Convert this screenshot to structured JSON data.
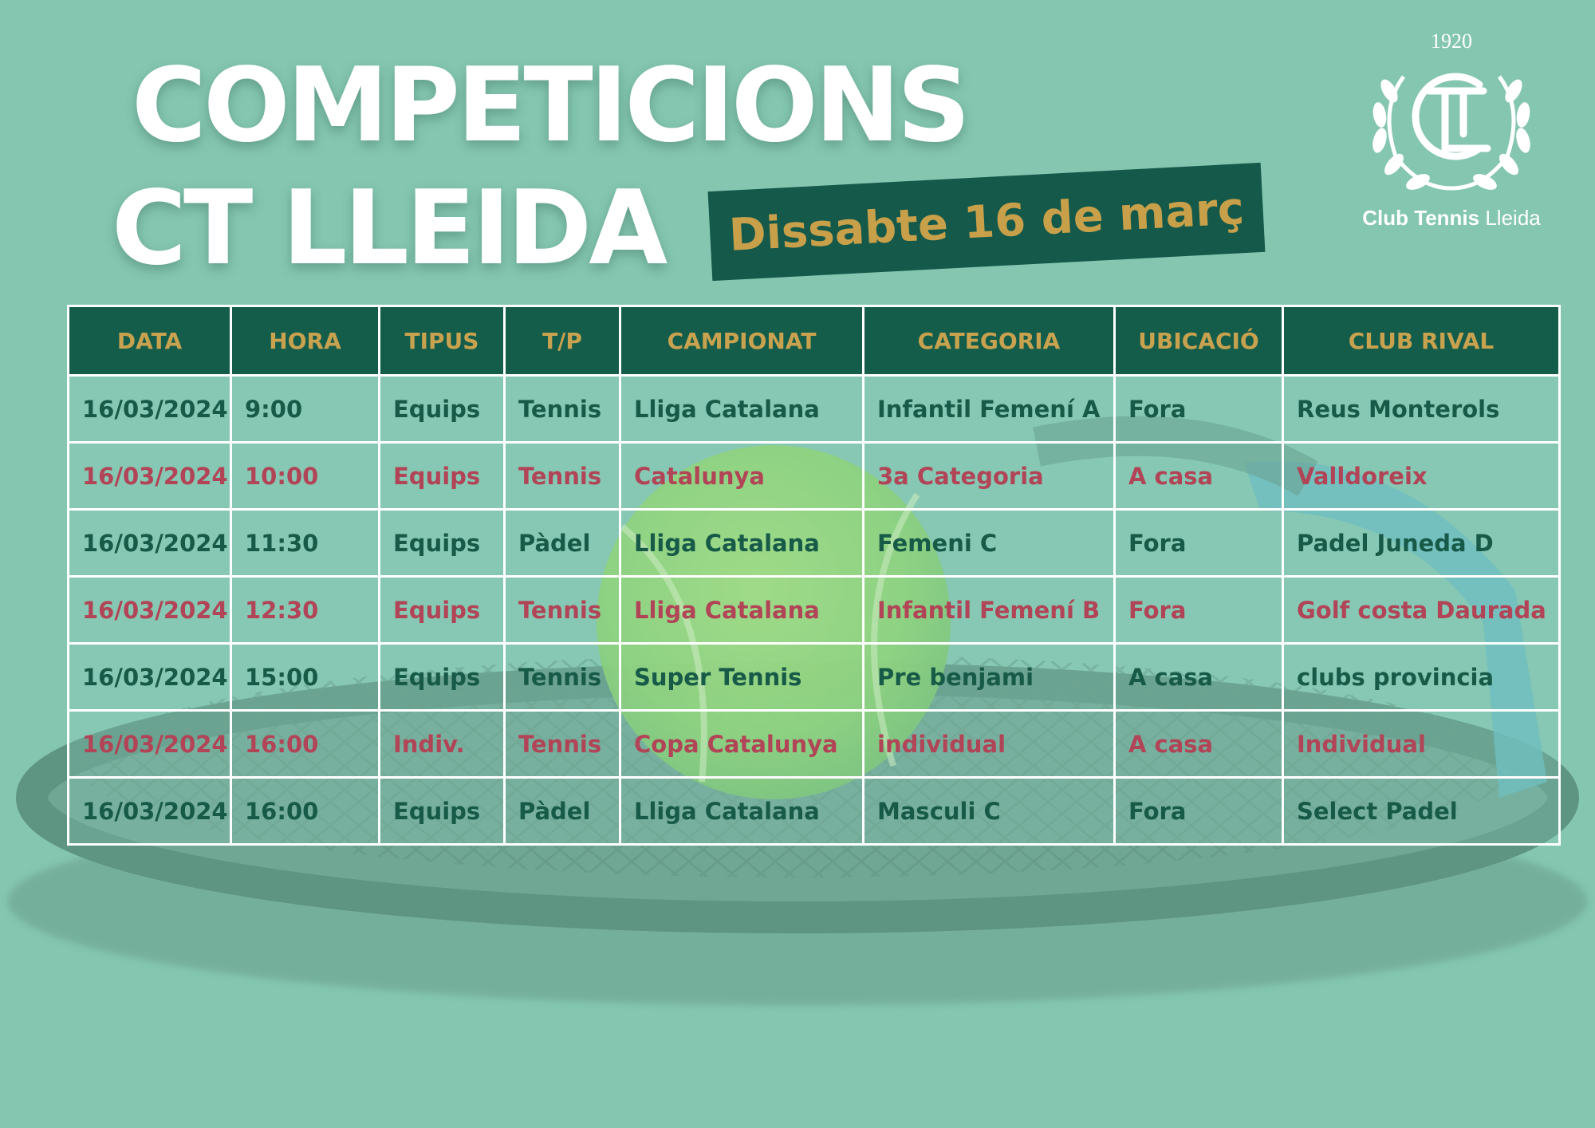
{
  "title": {
    "line1": "COMPETICIONS",
    "line2": "CT LLEIDA"
  },
  "date_banner": "Dissabte 16 de març",
  "logo": {
    "year": "1920",
    "monogram": "CTL",
    "caption_bold": "Club Tennis",
    "caption_light": "Lleida"
  },
  "colors": {
    "background": "#84c6b0",
    "header_bg": "#155d4b",
    "header_text": "#c8a24e",
    "row_green": "#175a48",
    "row_red": "#b14456"
  },
  "table": {
    "headers": [
      "DATA",
      "HORA",
      "TIPUS",
      "T/P",
      "CAMPIONAT",
      "CATEGORIA",
      "UBICACIÓ",
      "CLUB RIVAL"
    ],
    "rows": [
      {
        "style": "green",
        "cells": [
          "16/03/2024",
          "9:00",
          "Equips",
          "Tennis",
          "Lliga Catalana",
          "Infantil Femení A",
          "Fora",
          "Reus Monterols"
        ]
      },
      {
        "style": "red",
        "cells": [
          "16/03/2024",
          "10:00",
          "Equips",
          "Tennis",
          "Catalunya",
          "3a Categoria",
          "A casa",
          "Valldoreix"
        ]
      },
      {
        "style": "green",
        "cells": [
          "16/03/2024",
          "11:30",
          "Equips",
          "Pàdel",
          "Lliga Catalana",
          "Femeni C",
          "Fora",
          "Padel Juneda D"
        ]
      },
      {
        "style": "red",
        "cells": [
          "16/03/2024",
          "12:30",
          "Equips",
          "Tennis",
          "Lliga Catalana",
          "Infantil Femení B",
          "Fora",
          "Golf costa Daurada"
        ]
      },
      {
        "style": "green",
        "cells": [
          "16/03/2024",
          "15:00",
          "Equips",
          "Tennis",
          "Super Tennis",
          "Pre benjami",
          "A casa",
          "clubs provincia"
        ]
      },
      {
        "style": "red",
        "cells": [
          "16/03/2024",
          "16:00",
          "Indiv.",
          "Tennis",
          "Copa Catalunya",
          "individual",
          "A casa",
          "Individual"
        ]
      },
      {
        "style": "green",
        "cells": [
          "16/03/2024",
          "16:00",
          "Equips",
          "Pàdel",
          "Lliga Catalana",
          "Masculi C",
          "Fora",
          "Select Padel"
        ]
      }
    ]
  }
}
